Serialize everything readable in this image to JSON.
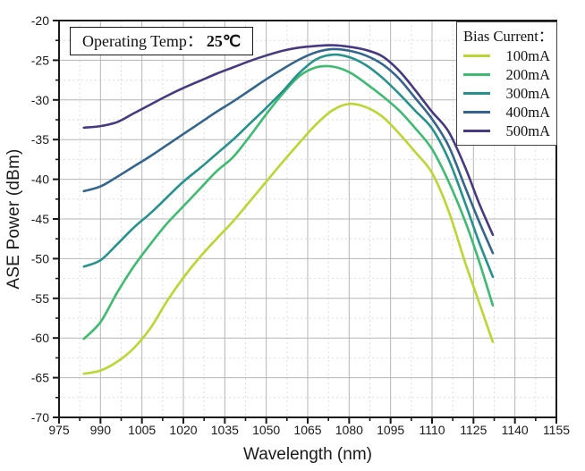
{
  "chart_data": {
    "type": "line",
    "title": "",
    "xlabel": "Wavelength (nm)",
    "ylabel": "ASE Power (dBm)",
    "xlim": [
      975,
      1155
    ],
    "xstep": 15,
    "ylim": [
      -70,
      -20
    ],
    "ystep": 5,
    "grid": {
      "major": true,
      "minor": true
    },
    "annotation": {
      "label": "Operating Temp：",
      "value": "25℃"
    },
    "legend": {
      "title": "Bias Current：",
      "position": "top-right"
    },
    "x": [
      984,
      990,
      996,
      1002,
      1008,
      1014,
      1020,
      1026,
      1032,
      1038,
      1044,
      1050,
      1056,
      1062,
      1068,
      1074,
      1080,
      1086,
      1092,
      1098,
      1104,
      1110,
      1116,
      1122,
      1127,
      1132
    ],
    "series": [
      {
        "name": "100mA",
        "color": "#bcd631",
        "values": [
          -64.5,
          -64.1,
          -63.0,
          -61.3,
          -58.8,
          -55.4,
          -52.4,
          -49.8,
          -47.5,
          -45.3,
          -42.8,
          -40.3,
          -37.8,
          -35.4,
          -33.1,
          -31.3,
          -30.5,
          -30.9,
          -32.1,
          -34.2,
          -36.6,
          -39.2,
          -44.0,
          -50.5,
          -55.5,
          -60.5
        ]
      },
      {
        "name": "200mA",
        "color": "#3dbb70",
        "values": [
          -60.1,
          -58.0,
          -54.3,
          -51.0,
          -48.2,
          -45.6,
          -43.4,
          -41.2,
          -39.0,
          -37.2,
          -34.6,
          -31.8,
          -29.2,
          -27.0,
          -25.9,
          -25.8,
          -26.5,
          -27.9,
          -29.5,
          -31.3,
          -33.6,
          -36.2,
          -40.3,
          -45.3,
          -50.3,
          -55.9
        ]
      },
      {
        "name": "300mA",
        "color": "#26928e",
        "values": [
          -51.0,
          -50.2,
          -48.2,
          -46.1,
          -44.3,
          -42.3,
          -40.3,
          -38.6,
          -36.8,
          -35.0,
          -33.0,
          -31.0,
          -28.9,
          -26.6,
          -24.9,
          -24.3,
          -24.6,
          -25.6,
          -27.2,
          -29.2,
          -31.4,
          -33.6,
          -37.5,
          -43.0,
          -47.9,
          -52.3
        ]
      },
      {
        "name": "400mA",
        "color": "#33658e",
        "values": [
          -41.5,
          -40.9,
          -39.7,
          -38.4,
          -37.1,
          -35.7,
          -34.3,
          -32.9,
          -31.5,
          -30.2,
          -28.8,
          -27.4,
          -26.1,
          -24.9,
          -24.0,
          -23.6,
          -23.8,
          -24.4,
          -25.5,
          -27.3,
          -29.8,
          -32.4,
          -35.8,
          -41.0,
          -45.3,
          -49.3
        ]
      },
      {
        "name": "500mA",
        "color": "#473982",
        "values": [
          -33.5,
          -33.3,
          -32.8,
          -31.7,
          -30.6,
          -29.5,
          -28.5,
          -27.6,
          -26.7,
          -25.9,
          -25.1,
          -24.4,
          -23.8,
          -23.4,
          -23.2,
          -23.1,
          -23.3,
          -23.7,
          -24.5,
          -26.3,
          -28.8,
          -31.5,
          -34.0,
          -38.5,
          -43.0,
          -47.0
        ]
      }
    ]
  }
}
